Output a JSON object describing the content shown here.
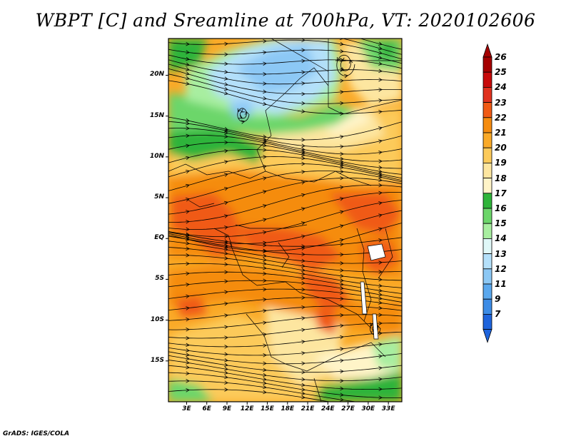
{
  "title": "WBPT [C] and Sreamline at 700hPa, VT: 2020102606",
  "credit": "GrADS: IGES/COLA",
  "map": {
    "lat_labels": [
      "20N",
      "15N",
      "10N",
      "5N",
      "EQ",
      "5S",
      "10S",
      "15S"
    ],
    "lat_values": [
      20,
      15,
      10,
      5,
      0,
      -5,
      -10,
      -15
    ],
    "lon_labels": [
      "3E",
      "6E",
      "9E",
      "12E",
      "15E",
      "18E",
      "21E",
      "24E",
      "27E",
      "30E",
      "33E"
    ],
    "lon_values": [
      3,
      6,
      9,
      12,
      15,
      18,
      21,
      24,
      27,
      30,
      33
    ],
    "lat_range": [
      -20,
      24.5
    ],
    "lon_range": [
      0.3,
      35
    ]
  },
  "colorbar": {
    "labels": [
      "26",
      "25",
      "24",
      "23",
      "22",
      "21",
      "20",
      "19",
      "18",
      "17",
      "16",
      "15",
      "14",
      "13",
      "12",
      "11",
      "9",
      "7"
    ],
    "colors": [
      "#a50000",
      "#c80a0a",
      "#e1321e",
      "#f05a14",
      "#f58c0f",
      "#faaa28",
      "#fcca5a",
      "#fde6a0",
      "#fff4c8",
      "#2fb43a",
      "#6cd66a",
      "#a8eea0",
      "#e0f8f8",
      "#b4e0fa",
      "#8cc8f5",
      "#5aa8ee",
      "#3c8ce6",
      "#1e64dc"
    ],
    "top_color": "#a50000",
    "bottom_color": "#1e64dc"
  },
  "palette": {
    "deep_orange": "#f05a14",
    "orange": "#f58c0f",
    "light_orange": "#faaa28",
    "peach": "#fcca5a",
    "pale": "#fde6a0",
    "cream": "#fff4c8",
    "green": "#2fb43a",
    "light_green": "#6cd66a",
    "pale_green": "#a8eea0",
    "blue": "#b4e0fa",
    "mid_blue": "#8cc8f5"
  }
}
